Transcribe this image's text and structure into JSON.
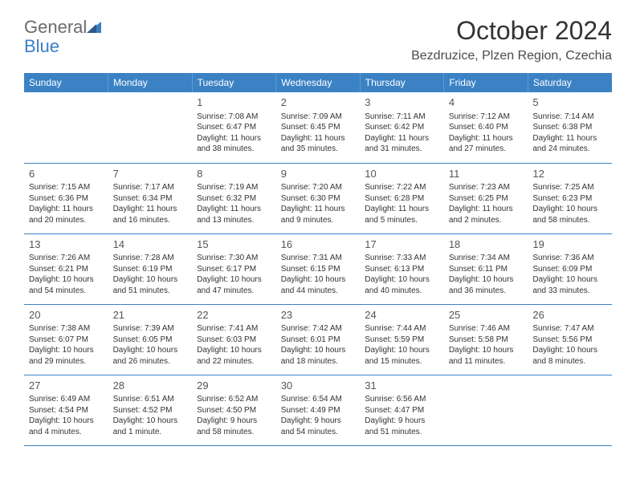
{
  "logo": {
    "text_general": "General",
    "text_blue": "Blue"
  },
  "header": {
    "month_title": "October 2024",
    "location": "Bezdruzice, Plzen Region, Czechia"
  },
  "colors": {
    "header_bg": "#3b82c4",
    "header_text": "#ffffff",
    "border": "#3b82c4",
    "logo_general": "#6b6b6b",
    "logo_blue": "#3b7fc4"
  },
  "weekdays": [
    "Sunday",
    "Monday",
    "Tuesday",
    "Wednesday",
    "Thursday",
    "Friday",
    "Saturday"
  ],
  "weeks": [
    [
      null,
      null,
      {
        "day": "1",
        "sunrise": "Sunrise: 7:08 AM",
        "sunset": "Sunset: 6:47 PM",
        "daylight": "Daylight: 11 hours and 38 minutes."
      },
      {
        "day": "2",
        "sunrise": "Sunrise: 7:09 AM",
        "sunset": "Sunset: 6:45 PM",
        "daylight": "Daylight: 11 hours and 35 minutes."
      },
      {
        "day": "3",
        "sunrise": "Sunrise: 7:11 AM",
        "sunset": "Sunset: 6:42 PM",
        "daylight": "Daylight: 11 hours and 31 minutes."
      },
      {
        "day": "4",
        "sunrise": "Sunrise: 7:12 AM",
        "sunset": "Sunset: 6:40 PM",
        "daylight": "Daylight: 11 hours and 27 minutes."
      },
      {
        "day": "5",
        "sunrise": "Sunrise: 7:14 AM",
        "sunset": "Sunset: 6:38 PM",
        "daylight": "Daylight: 11 hours and 24 minutes."
      }
    ],
    [
      {
        "day": "6",
        "sunrise": "Sunrise: 7:15 AM",
        "sunset": "Sunset: 6:36 PM",
        "daylight": "Daylight: 11 hours and 20 minutes."
      },
      {
        "day": "7",
        "sunrise": "Sunrise: 7:17 AM",
        "sunset": "Sunset: 6:34 PM",
        "daylight": "Daylight: 11 hours and 16 minutes."
      },
      {
        "day": "8",
        "sunrise": "Sunrise: 7:19 AM",
        "sunset": "Sunset: 6:32 PM",
        "daylight": "Daylight: 11 hours and 13 minutes."
      },
      {
        "day": "9",
        "sunrise": "Sunrise: 7:20 AM",
        "sunset": "Sunset: 6:30 PM",
        "daylight": "Daylight: 11 hours and 9 minutes."
      },
      {
        "day": "10",
        "sunrise": "Sunrise: 7:22 AM",
        "sunset": "Sunset: 6:28 PM",
        "daylight": "Daylight: 11 hours and 5 minutes."
      },
      {
        "day": "11",
        "sunrise": "Sunrise: 7:23 AM",
        "sunset": "Sunset: 6:25 PM",
        "daylight": "Daylight: 11 hours and 2 minutes."
      },
      {
        "day": "12",
        "sunrise": "Sunrise: 7:25 AM",
        "sunset": "Sunset: 6:23 PM",
        "daylight": "Daylight: 10 hours and 58 minutes."
      }
    ],
    [
      {
        "day": "13",
        "sunrise": "Sunrise: 7:26 AM",
        "sunset": "Sunset: 6:21 PM",
        "daylight": "Daylight: 10 hours and 54 minutes."
      },
      {
        "day": "14",
        "sunrise": "Sunrise: 7:28 AM",
        "sunset": "Sunset: 6:19 PM",
        "daylight": "Daylight: 10 hours and 51 minutes."
      },
      {
        "day": "15",
        "sunrise": "Sunrise: 7:30 AM",
        "sunset": "Sunset: 6:17 PM",
        "daylight": "Daylight: 10 hours and 47 minutes."
      },
      {
        "day": "16",
        "sunrise": "Sunrise: 7:31 AM",
        "sunset": "Sunset: 6:15 PM",
        "daylight": "Daylight: 10 hours and 44 minutes."
      },
      {
        "day": "17",
        "sunrise": "Sunrise: 7:33 AM",
        "sunset": "Sunset: 6:13 PM",
        "daylight": "Daylight: 10 hours and 40 minutes."
      },
      {
        "day": "18",
        "sunrise": "Sunrise: 7:34 AM",
        "sunset": "Sunset: 6:11 PM",
        "daylight": "Daylight: 10 hours and 36 minutes."
      },
      {
        "day": "19",
        "sunrise": "Sunrise: 7:36 AM",
        "sunset": "Sunset: 6:09 PM",
        "daylight": "Daylight: 10 hours and 33 minutes."
      }
    ],
    [
      {
        "day": "20",
        "sunrise": "Sunrise: 7:38 AM",
        "sunset": "Sunset: 6:07 PM",
        "daylight": "Daylight: 10 hours and 29 minutes."
      },
      {
        "day": "21",
        "sunrise": "Sunrise: 7:39 AM",
        "sunset": "Sunset: 6:05 PM",
        "daylight": "Daylight: 10 hours and 26 minutes."
      },
      {
        "day": "22",
        "sunrise": "Sunrise: 7:41 AM",
        "sunset": "Sunset: 6:03 PM",
        "daylight": "Daylight: 10 hours and 22 minutes."
      },
      {
        "day": "23",
        "sunrise": "Sunrise: 7:42 AM",
        "sunset": "Sunset: 6:01 PM",
        "daylight": "Daylight: 10 hours and 18 minutes."
      },
      {
        "day": "24",
        "sunrise": "Sunrise: 7:44 AM",
        "sunset": "Sunset: 5:59 PM",
        "daylight": "Daylight: 10 hours and 15 minutes."
      },
      {
        "day": "25",
        "sunrise": "Sunrise: 7:46 AM",
        "sunset": "Sunset: 5:58 PM",
        "daylight": "Daylight: 10 hours and 11 minutes."
      },
      {
        "day": "26",
        "sunrise": "Sunrise: 7:47 AM",
        "sunset": "Sunset: 5:56 PM",
        "daylight": "Daylight: 10 hours and 8 minutes."
      }
    ],
    [
      {
        "day": "27",
        "sunrise": "Sunrise: 6:49 AM",
        "sunset": "Sunset: 4:54 PM",
        "daylight": "Daylight: 10 hours and 4 minutes."
      },
      {
        "day": "28",
        "sunrise": "Sunrise: 6:51 AM",
        "sunset": "Sunset: 4:52 PM",
        "daylight": "Daylight: 10 hours and 1 minute."
      },
      {
        "day": "29",
        "sunrise": "Sunrise: 6:52 AM",
        "sunset": "Sunset: 4:50 PM",
        "daylight": "Daylight: 9 hours and 58 minutes."
      },
      {
        "day": "30",
        "sunrise": "Sunrise: 6:54 AM",
        "sunset": "Sunset: 4:49 PM",
        "daylight": "Daylight: 9 hours and 54 minutes."
      },
      {
        "day": "31",
        "sunrise": "Sunrise: 6:56 AM",
        "sunset": "Sunset: 4:47 PM",
        "daylight": "Daylight: 9 hours and 51 minutes."
      },
      null,
      null
    ]
  ]
}
